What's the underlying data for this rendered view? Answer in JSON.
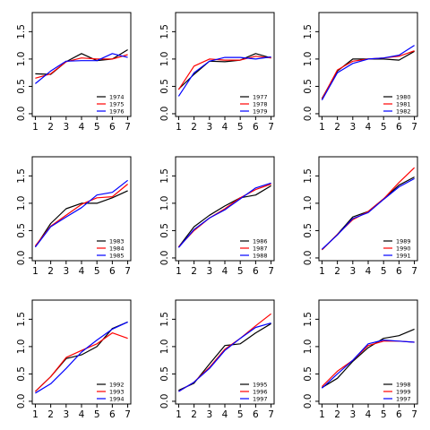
{
  "colors": {
    "black": "#000000",
    "red": "#ff0000",
    "blue": "#0000ff"
  },
  "chart_data": [
    {
      "type": "line",
      "x": [
        1,
        2,
        3,
        4,
        5,
        6,
        7
      ],
      "ylim": [
        -0.05,
        1.85
      ],
      "yticks": [
        "0.0",
        "0.5",
        "1.0",
        "1.5"
      ],
      "yticks_values": [
        0,
        0.5,
        1.0,
        1.5
      ],
      "xticks": [
        "1",
        "2",
        "3",
        "4",
        "5",
        "6",
        "7"
      ],
      "legend_position": "bottom-right",
      "series": [
        {
          "name": "1974",
          "color": "#000000",
          "values": [
            0.73,
            0.72,
            0.95,
            1.1,
            0.97,
            1.0,
            1.17
          ]
        },
        {
          "name": "1975",
          "color": "#ff0000",
          "values": [
            0.65,
            0.73,
            0.95,
            1.02,
            1.0,
            1.0,
            1.08
          ]
        },
        {
          "name": "1976",
          "color": "#0000ff",
          "values": [
            0.55,
            0.78,
            0.96,
            0.97,
            0.97,
            1.1,
            1.03
          ]
        }
      ]
    },
    {
      "type": "line",
      "x": [
        1,
        2,
        3,
        4,
        5,
        6,
        7
      ],
      "ylim": [
        -0.05,
        1.85
      ],
      "yticks": [
        "0.0",
        "0.5",
        "1.0",
        "1.5"
      ],
      "yticks_values": [
        0,
        0.5,
        1.0,
        1.5
      ],
      "xticks": [
        "1",
        "2",
        "3",
        "4",
        "5",
        "6",
        "7"
      ],
      "legend_position": "bottom-right",
      "series": [
        {
          "name": "1977",
          "color": "#000000",
          "values": [
            0.45,
            0.72,
            0.96,
            0.95,
            0.98,
            1.1,
            1.02
          ]
        },
        {
          "name": "1978",
          "color": "#ff0000",
          "values": [
            0.44,
            0.87,
            1.0,
            0.98,
            0.98,
            1.05,
            1.02
          ]
        },
        {
          "name": "1979",
          "color": "#0000ff",
          "values": [
            0.32,
            0.75,
            0.96,
            1.03,
            1.03,
            1.0,
            1.04
          ]
        }
      ]
    },
    {
      "type": "line",
      "x": [
        1,
        2,
        3,
        4,
        5,
        6,
        7
      ],
      "ylim": [
        -0.05,
        1.85
      ],
      "yticks": [
        "0.0",
        "0.5",
        "1.0",
        "1.5"
      ],
      "yticks_values": [
        0,
        0.5,
        1.0,
        1.5
      ],
      "xticks": [
        "1",
        "2",
        "3",
        "4",
        "5",
        "6",
        "7"
      ],
      "legend_position": "bottom-right",
      "series": [
        {
          "name": "1980",
          "color": "#000000",
          "values": [
            0.28,
            0.78,
            1.0,
            1.0,
            1.0,
            0.98,
            1.14
          ]
        },
        {
          "name": "1981",
          "color": "#ff0000",
          "values": [
            0.27,
            0.8,
            0.96,
            1.0,
            1.02,
            1.05,
            1.15
          ]
        },
        {
          "name": "1982",
          "color": "#0000ff",
          "values": [
            0.25,
            0.75,
            0.92,
            1.0,
            1.02,
            1.07,
            1.25
          ]
        }
      ]
    },
    {
      "type": "line",
      "x": [
        1,
        2,
        3,
        4,
        5,
        6,
        7
      ],
      "ylim": [
        -0.05,
        1.85
      ],
      "yticks": [
        "0.0",
        "0.5",
        "1.0",
        "1.5"
      ],
      "yticks_values": [
        0,
        0.5,
        1.0,
        1.5
      ],
      "xticks": [
        "1",
        "2",
        "3",
        "4",
        "5",
        "6",
        "7"
      ],
      "legend_position": "bottom-right",
      "series": [
        {
          "name": "1983",
          "color": "#000000",
          "values": [
            0.2,
            0.63,
            0.9,
            1.0,
            1.0,
            1.1,
            1.23
          ]
        },
        {
          "name": "1984",
          "color": "#ff0000",
          "values": [
            0.22,
            0.58,
            0.78,
            0.98,
            1.1,
            1.12,
            1.35
          ]
        },
        {
          "name": "1985",
          "color": "#0000ff",
          "values": [
            0.2,
            0.57,
            0.75,
            0.92,
            1.15,
            1.2,
            1.42
          ]
        }
      ]
    },
    {
      "type": "line",
      "x": [
        1,
        2,
        3,
        4,
        5,
        6,
        7
      ],
      "ylim": [
        -0.05,
        1.85
      ],
      "yticks": [
        "0.0",
        "0.5",
        "1.0",
        "1.5"
      ],
      "yticks_values": [
        0,
        0.5,
        1.0,
        1.5
      ],
      "xticks": [
        "1",
        "2",
        "3",
        "4",
        "5",
        "6",
        "7"
      ],
      "legend_position": "bottom-right",
      "series": [
        {
          "name": "1986",
          "color": "#000000",
          "values": [
            0.2,
            0.57,
            0.78,
            0.95,
            1.1,
            1.15,
            1.32
          ]
        },
        {
          "name": "1987",
          "color": "#ff0000",
          "values": [
            0.2,
            0.5,
            0.73,
            0.9,
            1.1,
            1.25,
            1.35
          ]
        },
        {
          "name": "1988",
          "color": "#0000ff",
          "values": [
            0.19,
            0.52,
            0.73,
            0.88,
            1.08,
            1.28,
            1.37
          ]
        }
      ]
    },
    {
      "type": "line",
      "x": [
        1,
        2,
        3,
        4,
        5,
        6,
        7
      ],
      "ylim": [
        -0.05,
        1.85
      ],
      "yticks": [
        "0.0",
        "0.5",
        "1.0",
        "1.5"
      ],
      "yticks_values": [
        0,
        0.5,
        1.0,
        1.5
      ],
      "xticks": [
        "1",
        "2",
        "3",
        "4",
        "5",
        "6",
        "7"
      ],
      "legend_position": "bottom-right",
      "series": [
        {
          "name": "1989",
          "color": "#000000",
          "values": [
            0.15,
            0.43,
            0.75,
            0.85,
            1.08,
            1.33,
            1.48
          ]
        },
        {
          "name": "1990",
          "color": "#ff0000",
          "values": [
            0.15,
            0.43,
            0.7,
            0.85,
            1.08,
            1.38,
            1.65
          ]
        },
        {
          "name": "1991",
          "color": "#0000ff",
          "values": [
            0.16,
            0.42,
            0.72,
            0.83,
            1.07,
            1.3,
            1.45
          ]
        }
      ]
    },
    {
      "type": "line",
      "x": [
        1,
        2,
        3,
        4,
        5,
        6,
        7
      ],
      "ylim": [
        -0.05,
        1.85
      ],
      "yticks": [
        "0.0",
        "0.5",
        "1.0",
        "1.5"
      ],
      "yticks_values": [
        0,
        0.5,
        1.0,
        1.5
      ],
      "xticks": [
        "1",
        "2",
        "3",
        "4",
        "5",
        "6",
        "7"
      ],
      "legend_position": "bottom-right",
      "series": [
        {
          "name": "1992",
          "color": "#000000",
          "values": [
            0.18,
            0.45,
            0.78,
            0.85,
            1.0,
            1.33,
            1.45
          ]
        },
        {
          "name": "1993",
          "color": "#ff0000",
          "values": [
            0.18,
            0.45,
            0.8,
            0.93,
            1.05,
            1.25,
            1.15
          ]
        },
        {
          "name": "1994",
          "color": "#0000ff",
          "values": [
            0.15,
            0.32,
            0.6,
            0.9,
            1.12,
            1.32,
            1.45
          ]
        }
      ]
    },
    {
      "type": "line",
      "x": [
        1,
        2,
        3,
        4,
        5,
        6,
        7
      ],
      "ylim": [
        -0.05,
        1.85
      ],
      "yticks": [
        "0.0",
        "0.5",
        "1.0",
        "1.5"
      ],
      "yticks_values": [
        0,
        0.5,
        1.0,
        1.5
      ],
      "xticks": [
        "1",
        "2",
        "3",
        "4",
        "5",
        "6",
        "7"
      ],
      "legend_position": "bottom-right",
      "series": [
        {
          "name": "1995",
          "color": "#000000",
          "values": [
            0.2,
            0.33,
            0.68,
            1.02,
            1.05,
            1.25,
            1.42
          ]
        },
        {
          "name": "1996",
          "color": "#ff0000",
          "values": [
            0.18,
            0.35,
            0.62,
            0.95,
            1.15,
            1.38,
            1.6
          ]
        },
        {
          "name": "1997",
          "color": "#0000ff",
          "values": [
            0.18,
            0.35,
            0.6,
            0.93,
            1.15,
            1.35,
            1.43
          ]
        }
      ]
    },
    {
      "type": "line",
      "x": [
        1,
        2,
        3,
        4,
        5,
        6,
        7
      ],
      "ylim": [
        -0.05,
        1.85
      ],
      "yticks": [
        "0.0",
        "0.5",
        "1.0",
        "1.5"
      ],
      "yticks_values": [
        0,
        0.5,
        1.0,
        1.5
      ],
      "xticks": [
        "1",
        "2",
        "3",
        "4",
        "5",
        "6",
        "7"
      ],
      "legend_position": "bottom-right",
      "series": [
        {
          "name": "1998",
          "color": "#000000",
          "values": [
            0.25,
            0.42,
            0.73,
            0.98,
            1.15,
            1.2,
            1.32
          ]
        },
        {
          "name": "1999",
          "color": "#ff0000",
          "values": [
            0.27,
            0.55,
            0.75,
            1.02,
            1.1,
            1.1,
            1.08
          ]
        },
        {
          "name": "1997",
          "color": "#0000ff",
          "values": [
            0.24,
            0.5,
            0.75,
            1.05,
            1.12,
            1.1,
            1.08
          ]
        }
      ]
    }
  ]
}
